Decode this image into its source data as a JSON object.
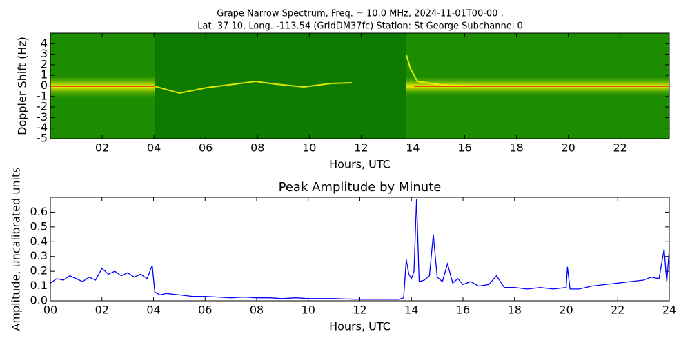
{
  "chart_data": [
    {
      "type": "spectrogram",
      "title": "Grape Narrow Spectrum, Freq. = 10.0 MHz, 2024-11-01T00-00 ,",
      "subtitle": "Lat.  37.10, Long. -113.54 (GridDM37fc) Station: St George Subchannel 0",
      "xlabel": "Hours, UTC",
      "ylabel": "Doppler Shift (Hz)",
      "xlim": [
        0,
        23.9
      ],
      "ylim": [
        -5,
        5
      ],
      "xticks": [
        {
          "value": 2,
          "label": "02"
        },
        {
          "value": 4,
          "label": "04"
        },
        {
          "value": 6,
          "label": "06"
        },
        {
          "value": 8,
          "label": "08"
        },
        10,
        12,
        14,
        16,
        18,
        20,
        22
      ],
      "yticks": [
        -5,
        -4,
        -3,
        -2,
        -1,
        0,
        1,
        2,
        3,
        4
      ]
    },
    {
      "type": "line",
      "title": "Peak Amplitude by Minute",
      "xlabel": "Hours, UTC",
      "ylabel": "Amplitude, uncalibrated units",
      "xlim": [
        0,
        24
      ],
      "ylim": [
        0,
        0.7
      ],
      "xticks": [
        {
          "value": 0,
          "label": "00"
        },
        {
          "value": 2,
          "label": "02"
        },
        {
          "value": 4,
          "label": "04"
        },
        {
          "value": 6,
          "label": "06"
        },
        {
          "value": 8,
          "label": "08"
        },
        10,
        12,
        14,
        16,
        18,
        20,
        22,
        24
      ],
      "yticks": [
        {
          "value": 0,
          "label": "0.0"
        },
        0.1,
        0.2,
        0.3,
        0.4,
        0.5,
        0.6
      ],
      "color": "#0000ff",
      "x": [
        0,
        0.25,
        0.5,
        0.75,
        1,
        1.25,
        1.5,
        1.75,
        2,
        2.25,
        2.5,
        2.75,
        3,
        3.25,
        3.5,
        3.75,
        3.95,
        4.05,
        4.25,
        4.5,
        5,
        5.5,
        6,
        6.5,
        7,
        7.5,
        8,
        8.5,
        9,
        9.5,
        10,
        10.5,
        11,
        11.5,
        12,
        12.5,
        13,
        13.5,
        13.7,
        13.8,
        13.9,
        14,
        14.1,
        14.2,
        14.3,
        14.5,
        14.7,
        14.85,
        15,
        15.2,
        15.4,
        15.6,
        15.8,
        16,
        16.3,
        16.6,
        17,
        17.3,
        17.6,
        18,
        18.5,
        19,
        19.5,
        20,
        20.05,
        20.15,
        20.5,
        21,
        21.5,
        22,
        22.5,
        23,
        23.3,
        23.6,
        23.8,
        23.9,
        24
      ],
      "values": [
        0.12,
        0.15,
        0.14,
        0.17,
        0.15,
        0.13,
        0.16,
        0.14,
        0.22,
        0.18,
        0.2,
        0.17,
        0.19,
        0.16,
        0.18,
        0.15,
        0.24,
        0.06,
        0.04,
        0.05,
        0.04,
        0.03,
        0.03,
        0.025,
        0.02,
        0.025,
        0.02,
        0.02,
        0.015,
        0.02,
        0.015,
        0.015,
        0.015,
        0.012,
        0.01,
        0.01,
        0.01,
        0.01,
        0.02,
        0.28,
        0.18,
        0.15,
        0.2,
        0.69,
        0.13,
        0.14,
        0.17,
        0.45,
        0.16,
        0.13,
        0.25,
        0.12,
        0.15,
        0.11,
        0.13,
        0.1,
        0.11,
        0.17,
        0.09,
        0.09,
        0.08,
        0.09,
        0.08,
        0.09,
        0.23,
        0.08,
        0.08,
        0.1,
        0.11,
        0.12,
        0.13,
        0.14,
        0.16,
        0.15,
        0.35,
        0.13,
        0.35
      ]
    }
  ]
}
